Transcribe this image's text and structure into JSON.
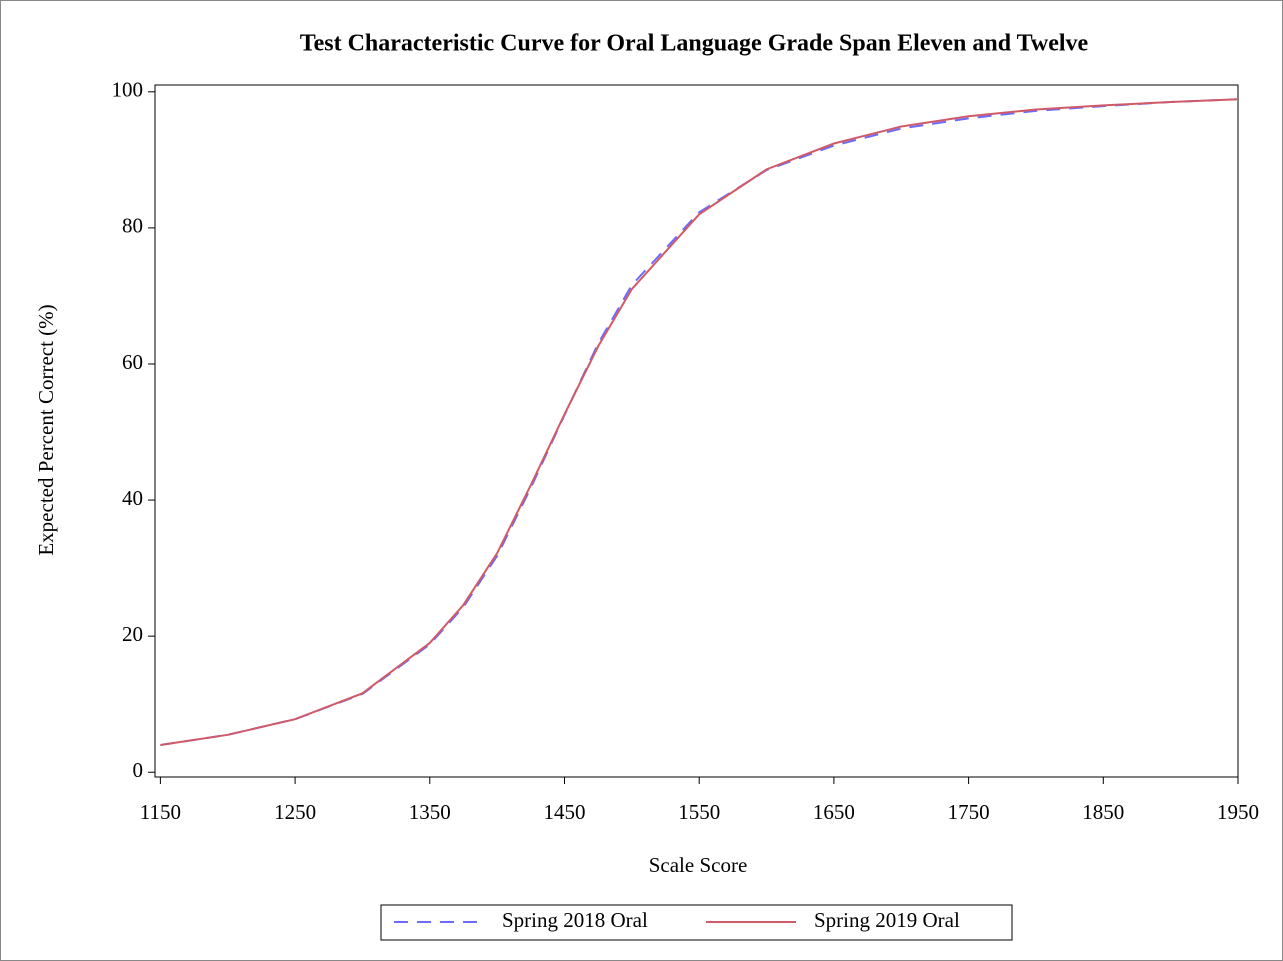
{
  "chart_data": {
    "type": "line",
    "title": "Test Characteristic Curve for Oral Language Grade Span Eleven and Twelve",
    "x_label": "Scale Score",
    "y_label": "Expected Percent Correct (%)",
    "x": [
      1150,
      1200,
      1250,
      1300,
      1350,
      1375,
      1400,
      1425,
      1450,
      1475,
      1500,
      1550,
      1600,
      1650,
      1700,
      1750,
      1800,
      1850,
      1900,
      1950
    ],
    "series": [
      {
        "name": "Spring 2018 Oral",
        "color": "#6b6bff",
        "dashed": true,
        "values": [
          4.0,
          5.5,
          7.8,
          11.5,
          18.8,
          24.3,
          31.8,
          41.8,
          52.5,
          63.0,
          71.6,
          82.3,
          88.5,
          92.1,
          94.6,
          96.1,
          97.2,
          97.9,
          98.5,
          98.9
        ]
      },
      {
        "name": "Spring 2019 Oral",
        "color": "#d05a68",
        "dashed": false,
        "values": [
          4.0,
          5.5,
          7.8,
          11.6,
          19.0,
          24.6,
          32.2,
          42.2,
          52.6,
          62.6,
          71.0,
          82.0,
          88.6,
          92.4,
          94.9,
          96.4,
          97.4,
          98.0,
          98.5,
          98.9
        ]
      }
    ],
    "xlim": [
      1146,
      1950
    ],
    "ylim": [
      -0.7,
      101
    ],
    "xticks": [
      1150,
      1250,
      1350,
      1450,
      1550,
      1650,
      1750,
      1850,
      1950
    ],
    "yticks": [
      0,
      20,
      40,
      60,
      80,
      100
    ],
    "legend": "bottom"
  }
}
